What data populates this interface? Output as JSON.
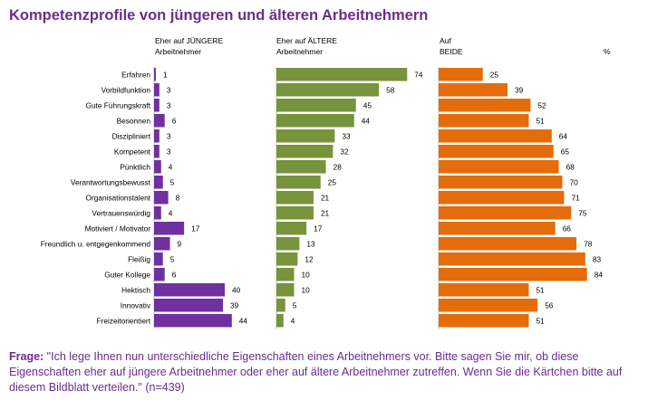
{
  "title": "Kompetenzprofile von jüngeren und älteren Arbeitnehmern",
  "colors": {
    "title": "#6b2c8e",
    "young": "#7030a0",
    "old": "#77933c",
    "both": "#e46c0a"
  },
  "chart_data": {
    "type": "bar",
    "unit": "%",
    "categories": [
      "Erfahren",
      "Vorbildfunktion",
      "Gute Führungskraft",
      "Besonnen",
      "Diszipliniert",
      "Kompetent",
      "Pünktlich",
      "Verantwortungsbewusst",
      "Organisationstalent",
      "Vertrauenswürdig",
      "Motiviert / Motivator",
      "Freundlich u. entgegenkommend",
      "Fleißig",
      "Guter Kollege",
      "Hektisch",
      "Innovativ",
      "Freizeitorientiert"
    ],
    "series": [
      {
        "name": "Eher auf JÜNGERE Arbeitnehmer",
        "header_line1": "Eher auf JÜNGERE",
        "header_line2": "Arbeitnehmer",
        "values": [
          1,
          3,
          3,
          6,
          3,
          3,
          4,
          5,
          8,
          4,
          17,
          9,
          5,
          6,
          40,
          39,
          44
        ]
      },
      {
        "name": "Eher auf ÄLTERE Arbeitnehmer",
        "header_line1": "Eher auf ÄLTERE",
        "header_line2": "Arbeitnehmer",
        "values": [
          74,
          58,
          45,
          44,
          33,
          32,
          28,
          25,
          21,
          21,
          17,
          13,
          12,
          10,
          10,
          5,
          4
        ]
      },
      {
        "name": "Auf BEIDE",
        "header_line1": "Auf",
        "header_line2": "BEIDE",
        "values": [
          25,
          39,
          52,
          51,
          64,
          65,
          68,
          70,
          71,
          75,
          66,
          78,
          83,
          84,
          51,
          56,
          51
        ]
      }
    ]
  },
  "footnote": {
    "label": "Frage:",
    "text": " \"Ich lege Ihnen nun unterschiedliche Eigenschaften eines Arbeitnehmers vor. Bitte sagen Sie mir, ob diese Eigenschaften eher auf jüngere Arbeitnehmer oder eher auf ältere Arbeitnehmer zutreffen. Wenn Sie die Kärtchen bitte auf diesem Bildblatt verteilen.\" (n=439)"
  }
}
